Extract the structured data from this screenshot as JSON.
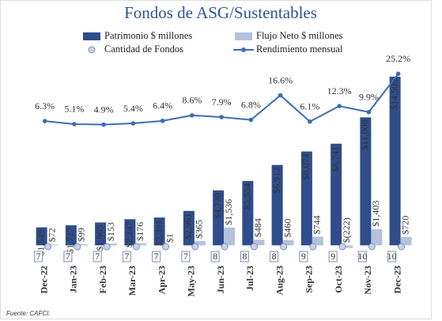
{
  "chart_data": {
    "type": "combo",
    "title": "Fondos de ASG/Sustentables",
    "categories": [
      "Dec-22",
      "Jan-23",
      "Feb-23",
      "Mar-23",
      "Apr-23",
      "May-23",
      "Jun-23",
      "Jul-23",
      "Aug-23",
      "Sep-23",
      "Oct-23",
      "Nov-23",
      "Dec-23"
    ],
    "series": [
      {
        "name": "Patrimonio $ millones",
        "type": "bar",
        "color": "#2f4d8c",
        "values": [
          1549,
          1727,
          1965,
          2247,
          2391,
          2961,
          4730,
          5534,
          6912,
          8074,
          8741,
          11008,
          14505
        ],
        "value_labels": [
          "$1,549",
          "$1,727",
          "$1,965",
          "$2,247",
          "$2,391",
          "$2,961",
          "$4,730",
          "$5,534",
          "$6,912",
          "$8,074",
          "$8,741",
          "$11,008",
          "$14,505"
        ]
      },
      {
        "name": "Flujo Neto $ millones",
        "type": "bar",
        "color": "#b4c2dc",
        "values": [
          72,
          99,
          153,
          176,
          1,
          365,
          1536,
          484,
          460,
          744,
          -222,
          1403,
          720
        ],
        "value_labels": [
          "$72",
          "$99",
          "$153",
          "$176",
          "$1",
          "$365",
          "$1,536",
          "$484",
          "$460",
          "$744",
          "$(222)",
          "$1,403",
          "$720"
        ]
      },
      {
        "name": "Cantidad de Fondos",
        "type": "scatter",
        "color": "#c9d3e8",
        "values": [
          7,
          7,
          7,
          7,
          7,
          7,
          8,
          8,
          8,
          9,
          9,
          10,
          10
        ]
      },
      {
        "name": "Rendimiento mensual",
        "type": "line",
        "axis": "y2",
        "color": "#3d6db5",
        "values": [
          6.3,
          5.1,
          4.9,
          5.4,
          6.4,
          8.6,
          7.9,
          6.8,
          16.6,
          6.1,
          12.3,
          9.9,
          25.2
        ],
        "value_labels": [
          "6.3%",
          "5.1%",
          "4.9%",
          "5.4%",
          "6.4%",
          "8.6%",
          "7.9%",
          "6.8%",
          "16.6%",
          "6.1%",
          "12.3%",
          "9.9%",
          "25.2%"
        ]
      }
    ],
    "ylim": [
      -1000,
      16000
    ],
    "y2lim": [
      -48,
      31
    ],
    "source": "Fuente: CAFCI."
  }
}
